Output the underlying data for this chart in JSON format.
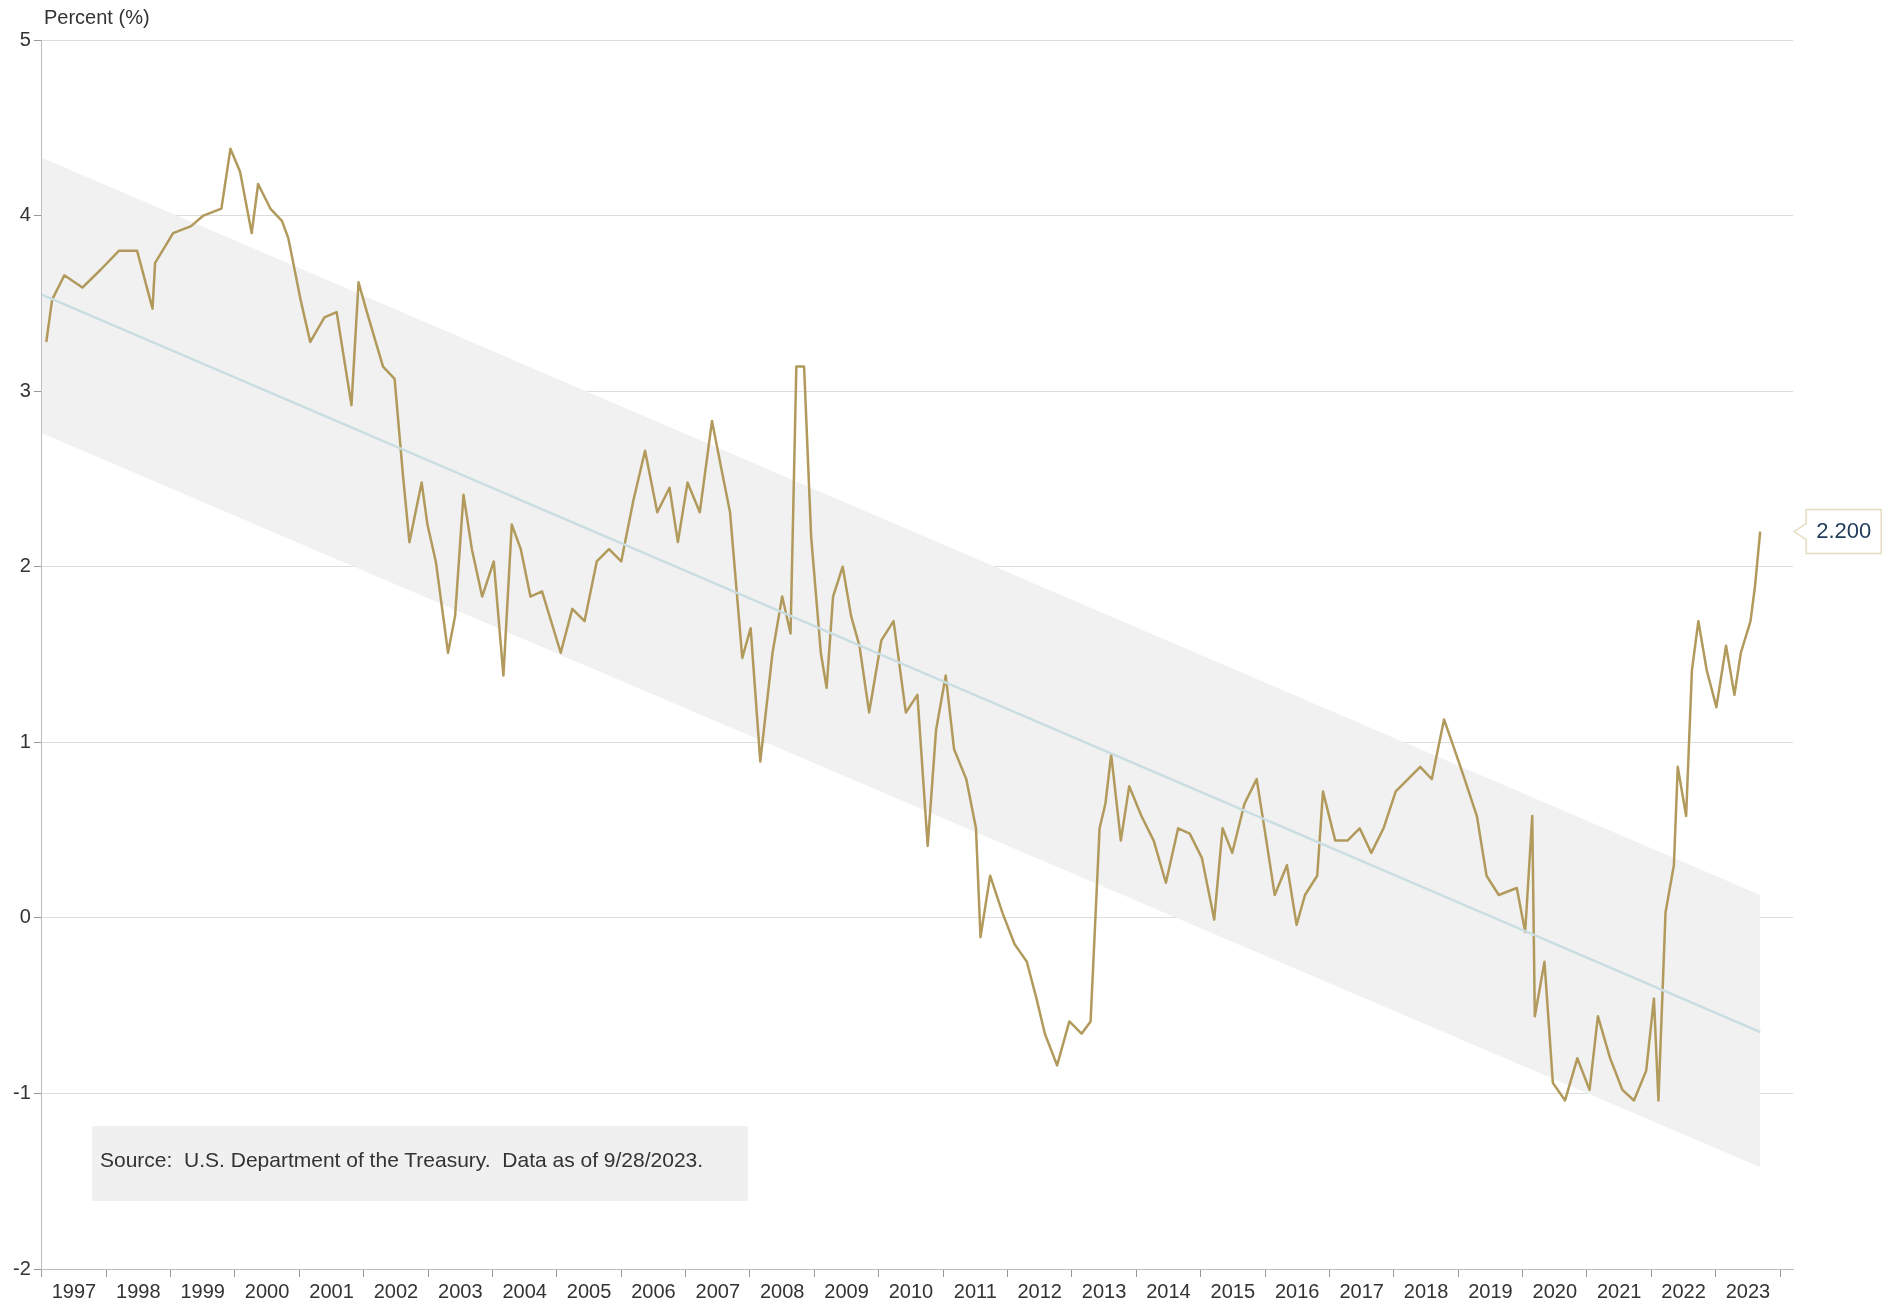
{
  "chart_data": {
    "type": "line",
    "ylabel": "Percent (%)",
    "xlim": [
      1997.0,
      2024.2
    ],
    "xticks": [
      {
        "value": 1997,
        "label": null
      },
      {
        "value": 1997.5,
        "label": "1997"
      },
      {
        "value": 1998,
        "label": null
      },
      {
        "value": 1998.5,
        "label": "1998"
      },
      {
        "value": 1999,
        "label": null
      },
      {
        "value": 1999.5,
        "label": "1999"
      },
      {
        "value": 2000,
        "label": null
      },
      {
        "value": 2000.5,
        "label": "2000"
      },
      {
        "value": 2001,
        "label": null
      },
      {
        "value": 2001.5,
        "label": "2001"
      },
      {
        "value": 2002,
        "label": null
      },
      {
        "value": 2002.5,
        "label": "2002"
      },
      {
        "value": 2003,
        "label": null
      },
      {
        "value": 2003.5,
        "label": "2003"
      },
      {
        "value": 2004,
        "label": null
      },
      {
        "value": 2004.5,
        "label": "2004"
      },
      {
        "value": 2005,
        "label": null
      },
      {
        "value": 2005.5,
        "label": "2005"
      },
      {
        "value": 2006,
        "label": null
      },
      {
        "value": 2006.5,
        "label": "2006"
      },
      {
        "value": 2007,
        "label": null
      },
      {
        "value": 2007.5,
        "label": "2007"
      },
      {
        "value": 2008,
        "label": null
      },
      {
        "value": 2008.5,
        "label": "2008"
      },
      {
        "value": 2009,
        "label": null
      },
      {
        "value": 2009.5,
        "label": "2009"
      },
      {
        "value": 2010,
        "label": null
      },
      {
        "value": 2010.5,
        "label": "2010"
      },
      {
        "value": 2011,
        "label": null
      },
      {
        "value": 2011.5,
        "label": "2011"
      },
      {
        "value": 2012,
        "label": null
      },
      {
        "value": 2012.5,
        "label": "2012"
      },
      {
        "value": 2013,
        "label": null
      },
      {
        "value": 2013.5,
        "label": "2013"
      },
      {
        "value": 2014,
        "label": null
      },
      {
        "value": 2014.5,
        "label": "2014"
      },
      {
        "value": 2015,
        "label": null
      },
      {
        "value": 2015.5,
        "label": "2015"
      },
      {
        "value": 2016,
        "label": null
      },
      {
        "value": 2016.5,
        "label": "2016"
      },
      {
        "value": 2017,
        "label": null
      },
      {
        "value": 2017.5,
        "label": "2017"
      },
      {
        "value": 2018,
        "label": null
      },
      {
        "value": 2018.5,
        "label": "2018"
      },
      {
        "value": 2019,
        "label": null
      },
      {
        "value": 2019.5,
        "label": "2019"
      },
      {
        "value": 2020,
        "label": null
      },
      {
        "value": 2020.5,
        "label": "2020"
      },
      {
        "value": 2021,
        "label": null
      },
      {
        "value": 2021.5,
        "label": "2021"
      },
      {
        "value": 2022,
        "label": null
      },
      {
        "value": 2022.5,
        "label": "2022"
      },
      {
        "value": 2023,
        "label": null
      },
      {
        "value": 2023.5,
        "label": "2023"
      },
      {
        "value": 2024,
        "label": null
      }
    ],
    "ylim": [
      -2,
      5
    ],
    "yticks": [
      -2,
      -1,
      0,
      1,
      2,
      3,
      4,
      5
    ],
    "grid": "y",
    "legend": false,
    "marker": "none",
    "line_style": "solid",
    "series": [
      {
        "color": "#c9dde3",
        "x": [
          1997.0,
          2023.69
        ],
        "values": [
          3.55,
          -0.65
        ],
        "lower": [
          2.76,
          -1.42
        ],
        "upper": [
          4.33,
          0.13
        ]
      },
      {
        "color": "#b19a5c",
        "x": [
          1997.07,
          1997.16,
          1997.35,
          1997.63,
          1997.91,
          1998.2,
          1998.48,
          1998.72,
          1998.76,
          1999.04,
          1999.32,
          1999.51,
          1999.79,
          1999.93,
          2000.08,
          2000.26,
          2000.36,
          2000.55,
          2000.73,
          2000.83,
          2001.02,
          2001.17,
          2001.39,
          2001.58,
          2001.81,
          2001.92,
          2002.05,
          2002.3,
          2002.48,
          2002.61,
          2002.71,
          2002.9,
          2002.99,
          2003.12,
          2003.31,
          2003.42,
          2003.55,
          2003.68,
          2003.84,
          2004.02,
          2004.17,
          2004.3,
          2004.44,
          2004.59,
          2004.77,
          2005.06,
          2005.24,
          2005.43,
          2005.62,
          2005.81,
          2006.0,
          2006.19,
          2006.37,
          2006.56,
          2006.75,
          2006.88,
          2007.03,
          2007.22,
          2007.41,
          2007.56,
          2007.69,
          2007.88,
          2008.01,
          2008.16,
          2008.35,
          2008.5,
          2008.63,
          2008.72,
          2008.84,
          2008.95,
          2009.1,
          2009.19,
          2009.29,
          2009.44,
          2009.57,
          2009.7,
          2009.85,
          2010.04,
          2010.23,
          2010.42,
          2010.6,
          2010.76,
          2010.89,
          2011.04,
          2011.17,
          2011.36,
          2011.51,
          2011.58,
          2011.73,
          2011.92,
          2012.11,
          2012.3,
          2012.45,
          2012.58,
          2012.77,
          2012.96,
          2013.15,
          2013.29,
          2013.43,
          2013.52,
          2013.61,
          2013.76,
          2013.89,
          2014.08,
          2014.27,
          2014.46,
          2014.65,
          2014.83,
          2015.02,
          2015.21,
          2015.34,
          2015.49,
          2015.68,
          2015.87,
          2016.02,
          2016.15,
          2016.34,
          2016.49,
          2016.62,
          2016.81,
          2016.9,
          2017.09,
          2017.28,
          2017.47,
          2017.65,
          2017.84,
          2018.03,
          2018.22,
          2018.41,
          2018.59,
          2018.78,
          2018.97,
          2019.1,
          2019.29,
          2019.44,
          2019.63,
          2019.91,
          2020.04,
          2020.15,
          2020.19,
          2020.34,
          2020.47,
          2020.66,
          2020.85,
          2021.04,
          2021.17,
          2021.36,
          2021.55,
          2021.73,
          2021.92,
          2022.04,
          2022.11,
          2022.22,
          2022.35,
          2022.41,
          2022.54,
          2022.63,
          2022.73,
          2022.86,
          2023.01,
          2023.16,
          2023.29,
          2023.39,
          2023.54,
          2023.61,
          2023.69
        ],
        "values": [
          3.28,
          3.52,
          3.66,
          3.59,
          3.69,
          3.8,
          3.8,
          3.47,
          3.73,
          3.9,
          3.94,
          4.0,
          4.04,
          4.38,
          4.25,
          3.9,
          4.18,
          4.04,
          3.97,
          3.87,
          3.52,
          3.28,
          3.42,
          3.45,
          2.92,
          3.62,
          3.45,
          3.14,
          3.07,
          2.52,
          2.14,
          2.48,
          2.24,
          2.03,
          1.51,
          1.72,
          2.41,
          2.1,
          1.83,
          2.03,
          1.38,
          2.24,
          2.1,
          1.83,
          1.86,
          1.51,
          1.76,
          1.69,
          2.03,
          2.1,
          2.03,
          2.38,
          2.66,
          2.31,
          2.45,
          2.14,
          2.48,
          2.31,
          2.83,
          2.55,
          2.31,
          1.48,
          1.65,
          0.89,
          1.51,
          1.83,
          1.62,
          3.14,
          3.14,
          2.17,
          1.51,
          1.31,
          1.83,
          2.0,
          1.72,
          1.55,
          1.17,
          1.58,
          1.69,
          1.17,
          1.27,
          0.41,
          1.07,
          1.38,
          0.96,
          0.79,
          0.51,
          -0.11,
          0.24,
          0.03,
          -0.15,
          -0.25,
          -0.46,
          -0.66,
          -0.84,
          -0.59,
          -0.66,
          -0.59,
          0.51,
          0.65,
          0.93,
          0.44,
          0.75,
          0.58,
          0.44,
          0.2,
          0.51,
          0.48,
          0.34,
          -0.01,
          0.51,
          0.37,
          0.65,
          0.79,
          0.44,
          0.13,
          0.3,
          -0.04,
          0.13,
          0.24,
          0.72,
          0.44,
          0.44,
          0.51,
          0.37,
          0.51,
          0.72,
          0.79,
          0.86,
          0.79,
          1.13,
          0.93,
          0.79,
          0.58,
          0.24,
          0.13,
          0.17,
          -0.08,
          0.58,
          -0.56,
          -0.25,
          -0.94,
          -1.04,
          -0.8,
          -0.98,
          -0.56,
          -0.8,
          -0.98,
          -1.04,
          -0.87,
          -0.46,
          -1.04,
          0.03,
          0.3,
          0.86,
          0.58,
          1.41,
          1.69,
          1.41,
          1.2,
          1.55,
          1.27,
          1.51,
          1.69,
          1.89,
          2.2
        ]
      }
    ],
    "annotations": [
      {
        "text": "2.200",
        "x": 2023.69,
        "y": 2.2
      },
      "Source:  U.S. Department of the Treasury.  Data as of 9/28/2023."
    ]
  }
}
